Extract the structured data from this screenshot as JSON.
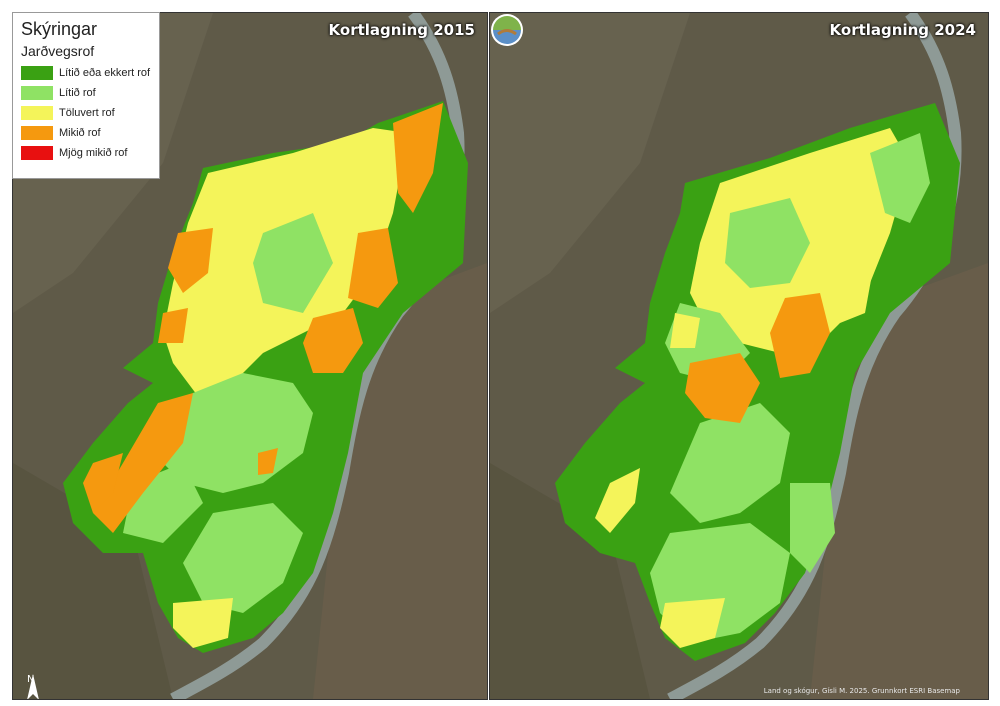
{
  "legend": {
    "title": "Skýringar",
    "subtitle": "Jarðvegsrof",
    "items": [
      {
        "label": "Lítið eða ekkert rof",
        "color": "#3aa113"
      },
      {
        "label": "Lítið rof",
        "color": "#8fe264"
      },
      {
        "label": "Töluvert rof",
        "color": "#f4f45a"
      },
      {
        "label": "Mikið rof",
        "color": "#f5990f"
      },
      {
        "label": "Mjög mikið rof",
        "color": "#e81010"
      }
    ]
  },
  "maps": [
    {
      "title": "Kortlagning 2015"
    },
    {
      "title": "Kortlagning 2024"
    }
  ],
  "north_arrow": "N",
  "credit": "Land og skógur, Gísli M. 2025. Grunnkort ESRI Basemap",
  "icons": {
    "north": "north-arrow-icon",
    "logo": "organization-logo-icon"
  }
}
